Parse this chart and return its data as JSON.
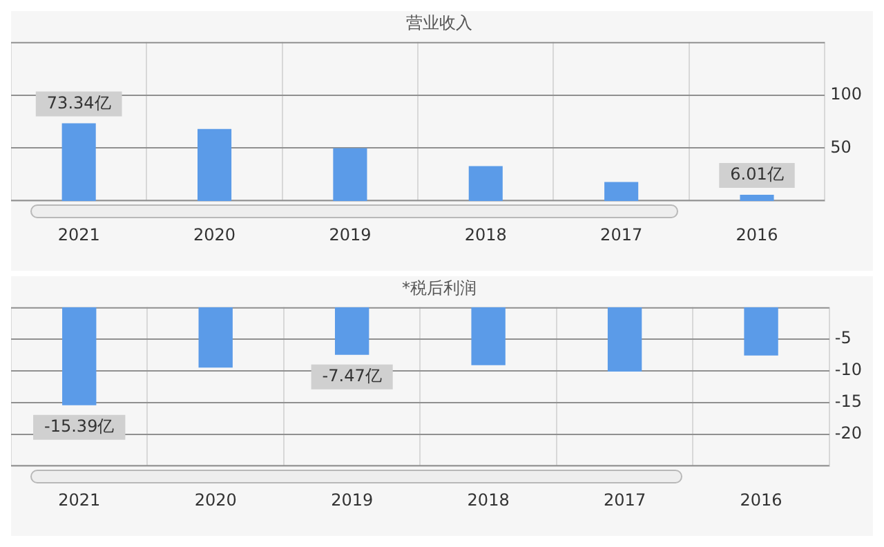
{
  "chart_data": [
    {
      "type": "bar",
      "title": "营业收入",
      "categories": [
        "2021",
        "2020",
        "2019",
        "2018",
        "2017",
        "2016"
      ],
      "values": [
        73.34,
        68,
        50,
        33,
        18,
        6.01
      ],
      "value_labels": [
        "73.34亿",
        null,
        null,
        null,
        null,
        "6.01亿"
      ],
      "color": "#5b9be8",
      "ylim": [
        0,
        150
      ],
      "yticks": [
        50,
        100
      ],
      "grid": true
    },
    {
      "type": "bar",
      "title": "*税后利润",
      "categories": [
        "2021",
        "2020",
        "2019",
        "2018",
        "2017",
        "2016"
      ],
      "values": [
        -15.39,
        -9.5,
        -7.47,
        -9.1,
        -10.1,
        -7.6
      ],
      "value_labels": [
        "-15.39亿",
        null,
        "-7.47亿",
        null,
        null,
        null
      ],
      "color": "#5b9be8",
      "ylim": [
        -25,
        0
      ],
      "yticks": [
        -20,
        -15,
        -10,
        -5
      ],
      "grid": true
    }
  ]
}
